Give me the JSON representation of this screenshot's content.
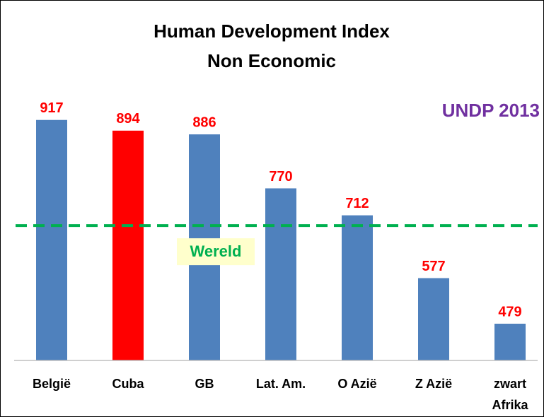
{
  "chart_data": {
    "type": "bar",
    "title": "Human Development Index",
    "subtitle": "Non Economic",
    "annotation": "UNDP 2013",
    "categories": [
      "België",
      "Cuba",
      "GB",
      "Lat. Am.",
      "O Azië",
      "Z Azië",
      "zwart Afrika"
    ],
    "values": [
      917,
      894,
      886,
      770,
      712,
      577,
      479
    ],
    "colors": [
      "#4f81bd",
      "#ff0000",
      "#4f81bd",
      "#4f81bd",
      "#4f81bd",
      "#4f81bd",
      "#4f81bd"
    ],
    "ylim": [
      400,
      950
    ],
    "reference": {
      "label": "Wereld",
      "value": 690,
      "color": "#00b050"
    }
  }
}
